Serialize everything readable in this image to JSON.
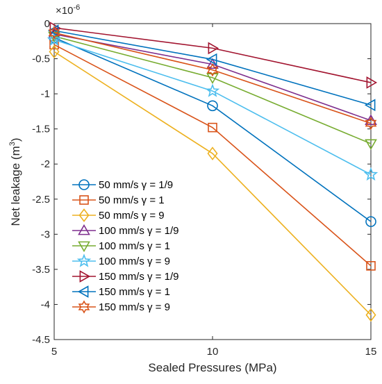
{
  "chart_data": {
    "type": "line",
    "title": "",
    "xlabel": "Sealed Pressures (MPa)",
    "ylabel": "Net leakage (m",
    "ylabel_sup": "3",
    "ylabel_end": ")",
    "exponent_label": "×10",
    "exponent_sup": "-6",
    "xlim": [
      5,
      15
    ],
    "ylim": [
      -4.5,
      0
    ],
    "xticks": [
      5,
      10,
      15
    ],
    "xtick_labels": [
      "5",
      "10",
      "15"
    ],
    "yticks": [
      0,
      -0.5,
      -1,
      -1.5,
      -2,
      -2.5,
      -3,
      -3.5,
      -4,
      -4.5
    ],
    "ytick_labels": [
      "0",
      "-0.5",
      "-1",
      "-1.5",
      "-2",
      "-2.5",
      "-3",
      "-3.5",
      "-4",
      "-4.5"
    ],
    "grid": false,
    "legend_position": "bottom-left",
    "x": [
      5,
      10,
      15
    ],
    "series": [
      {
        "name": "50 mm/s γ = 1/9",
        "values": [
          -0.2,
          -1.17,
          -2.82
        ],
        "color": "#0072BD",
        "marker": "circle"
      },
      {
        "name": "50 mm/s γ = 1",
        "values": [
          -0.3,
          -1.48,
          -3.45
        ],
        "color": "#D95319",
        "marker": "square"
      },
      {
        "name": "50 mm/s γ = 9",
        "values": [
          -0.4,
          -1.85,
          -4.15
        ],
        "color": "#EDB120",
        "marker": "diamond"
      },
      {
        "name": "100 mm/s γ = 1/9",
        "values": [
          -0.15,
          -0.58,
          -1.38
        ],
        "color": "#7E2F8E",
        "marker": "triangle-up"
      },
      {
        "name": "100 mm/s γ = 1",
        "values": [
          -0.18,
          -0.77,
          -1.71
        ],
        "color": "#77AC30",
        "marker": "triangle-down"
      },
      {
        "name": "100 mm/s γ = 9",
        "values": [
          -0.23,
          -0.96,
          -2.15
        ],
        "color": "#4DBEEE",
        "marker": "pentagram"
      },
      {
        "name": "150 mm/s γ = 1/9",
        "values": [
          -0.06,
          -0.35,
          -0.84
        ],
        "color": "#A2142F",
        "marker": "triangle-right"
      },
      {
        "name": "150 mm/s γ = 1",
        "values": [
          -0.1,
          -0.51,
          -1.16
        ],
        "color": "#0072BD",
        "marker": "triangle-left"
      },
      {
        "name": "150 mm/s γ = 9",
        "values": [
          -0.13,
          -0.66,
          -1.42
        ],
        "color": "#D95319",
        "marker": "hexagram"
      }
    ]
  }
}
